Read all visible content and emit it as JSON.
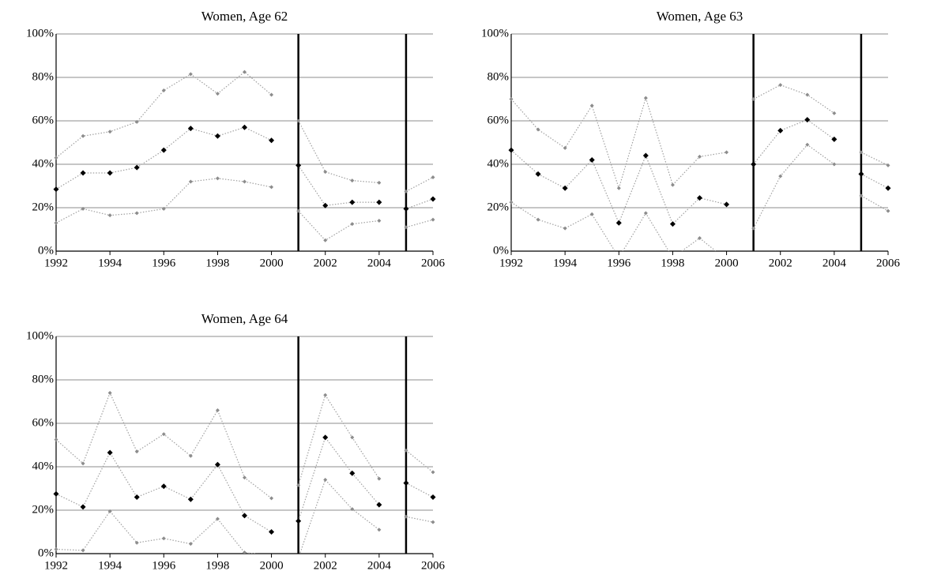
{
  "chart_data": [
    {
      "type": "line",
      "title": "Women, Age 62",
      "x": [
        1992,
        1993,
        1994,
        1995,
        1996,
        1997,
        1998,
        1999,
        2000,
        2001,
        2002,
        2003,
        2004,
        2005,
        2006
      ],
      "series": [
        {
          "color": "#8c8c8c",
          "values": [
            43,
            53,
            55,
            59.5,
            74,
            81.5,
            72.5,
            82.5,
            72,
            60,
            36.5,
            32.5,
            31.5,
            27.5,
            34
          ]
        },
        {
          "color": "#000000",
          "values": [
            28.5,
            36,
            36,
            38.5,
            46.5,
            56.5,
            53,
            57,
            51,
            39.5,
            21,
            22.5,
            22.5,
            19.5,
            24
          ]
        },
        {
          "color": "#8c8c8c",
          "values": [
            13,
            19.5,
            16.5,
            17.5,
            19.5,
            32,
            33.5,
            32,
            29.5,
            18.5,
            5,
            12.5,
            14,
            11,
            14.5
          ]
        }
      ],
      "xlim": [
        1992,
        2006
      ],
      "xticks": [
        1992,
        1994,
        1996,
        1998,
        2000,
        2002,
        2004,
        2006
      ],
      "ylim": [
        0,
        100
      ],
      "yticks": [
        {
          "value": 0,
          "label": "0%"
        },
        {
          "value": 20,
          "label": "20%"
        },
        {
          "value": 40,
          "label": "40%"
        },
        {
          "value": 60,
          "label": "60%"
        },
        {
          "value": 80,
          "label": "80%"
        },
        {
          "value": 100,
          "label": "100%"
        }
      ],
      "vlines": [
        2001,
        2005
      ],
      "grid": true,
      "line_style": "dotted",
      "line_color": "#a0a0a0"
    },
    {
      "type": "line",
      "title": "Women, Age 63",
      "x": [
        1992,
        1993,
        1994,
        1995,
        1996,
        1997,
        1998,
        1999,
        2000,
        2001,
        2002,
        2003,
        2004,
        2005,
        2006
      ],
      "series": [
        {
          "color": "#8c8c8c",
          "values": [
            70,
            56,
            47.5,
            67,
            29,
            70.5,
            30.5,
            43.5,
            45.5,
            70,
            76.5,
            72,
            63.5,
            45.5,
            39.5
          ]
        },
        {
          "color": "#000000",
          "values": [
            46.5,
            35.5,
            29,
            42,
            13,
            44,
            12.5,
            24.5,
            21.5,
            40,
            55.5,
            60.5,
            51.5,
            35.5,
            29
          ]
        },
        {
          "color": "#8c8c8c",
          "values": [
            22.5,
            14.5,
            10.5,
            17,
            -3,
            17.5,
            -3,
            6,
            -4,
            10.5,
            34.5,
            49,
            40,
            25.5,
            18.5
          ]
        }
      ],
      "xlim": [
        1992,
        2006
      ],
      "xticks": [
        1992,
        1994,
        1996,
        1998,
        2000,
        2002,
        2004,
        2006
      ],
      "ylim": [
        0,
        100
      ],
      "yticks": [
        {
          "value": 0,
          "label": "0%"
        },
        {
          "value": 20,
          "label": "20%"
        },
        {
          "value": 40,
          "label": "40%"
        },
        {
          "value": 60,
          "label": "60%"
        },
        {
          "value": 80,
          "label": "80%"
        },
        {
          "value": 100,
          "label": "100%"
        }
      ],
      "vlines": [
        2001,
        2005
      ],
      "grid": true,
      "line_style": "dotted",
      "line_color": "#a0a0a0"
    },
    {
      "type": "line",
      "title": "Women, Age 64",
      "x": [
        1992,
        1993,
        1994,
        1995,
        1996,
        1997,
        1998,
        1999,
        2000,
        2001,
        2002,
        2003,
        2004,
        2005,
        2006
      ],
      "series": [
        {
          "color": "#8c8c8c",
          "values": [
            52.5,
            41.5,
            74,
            47,
            55,
            45,
            66,
            35,
            25.5,
            31.5,
            73,
            53.5,
            34.5,
            47.5,
            37.5
          ]
        },
        {
          "color": "#000000",
          "values": [
            27.5,
            21.5,
            46.5,
            26,
            31,
            25,
            41,
            17.5,
            10,
            15,
            53.5,
            37,
            22.5,
            32.5,
            26
          ]
        },
        {
          "color": "#8c8c8c",
          "values": [
            2,
            1.5,
            19.5,
            5,
            7,
            4.5,
            16,
            0.5,
            -1,
            -2,
            34,
            20.5,
            11,
            17,
            14.5
          ]
        }
      ],
      "xlim": [
        1992,
        2006
      ],
      "xticks": [
        1992,
        1994,
        1996,
        1998,
        2000,
        2002,
        2004,
        2006
      ],
      "ylim": [
        0,
        100
      ],
      "yticks": [
        {
          "value": 0,
          "label": "0%"
        },
        {
          "value": 20,
          "label": "20%"
        },
        {
          "value": 40,
          "label": "40%"
        },
        {
          "value": 60,
          "label": "60%"
        },
        {
          "value": 80,
          "label": "80%"
        },
        {
          "value": 100,
          "label": "100%"
        }
      ],
      "vlines": [
        2001,
        2005
      ],
      "grid": true,
      "line_style": "dotted",
      "line_color": "#a0a0a0"
    }
  ]
}
